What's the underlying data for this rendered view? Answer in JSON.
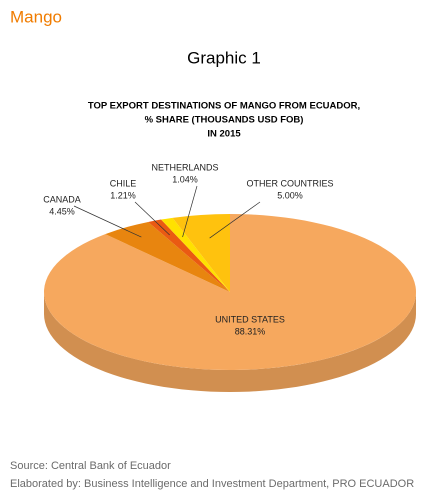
{
  "header": {
    "title": "Mango"
  },
  "chart_data": {
    "type": "pie",
    "title": "Graphic 1",
    "subtitle": [
      "TOP EXPORT DESTINATIONS OF MANGO FROM ECUADOR,",
      "% SHARE (THOUSANDS USD FOB)",
      "IN 2015"
    ],
    "categories": [
      "UNITED STATES",
      "CANADA",
      "CHILE",
      "NETHERLANDS",
      "OTHER COUNTRIES"
    ],
    "values": [
      88.31,
      4.45,
      1.21,
      1.04,
      5
    ],
    "value_labels": [
      "88.31%",
      "4.45%",
      "1.21%",
      "1.04%",
      "5.00%"
    ],
    "colors": [
      "#f6a85e",
      "#e8850f",
      "#ea5a12",
      "#ffe100",
      "#ffc20e"
    ]
  },
  "footer": {
    "source": "Source: Central Bank of Ecuador",
    "credit": "Elaborated by: Business Intelligence and Investment Department, PRO ECUADOR"
  }
}
